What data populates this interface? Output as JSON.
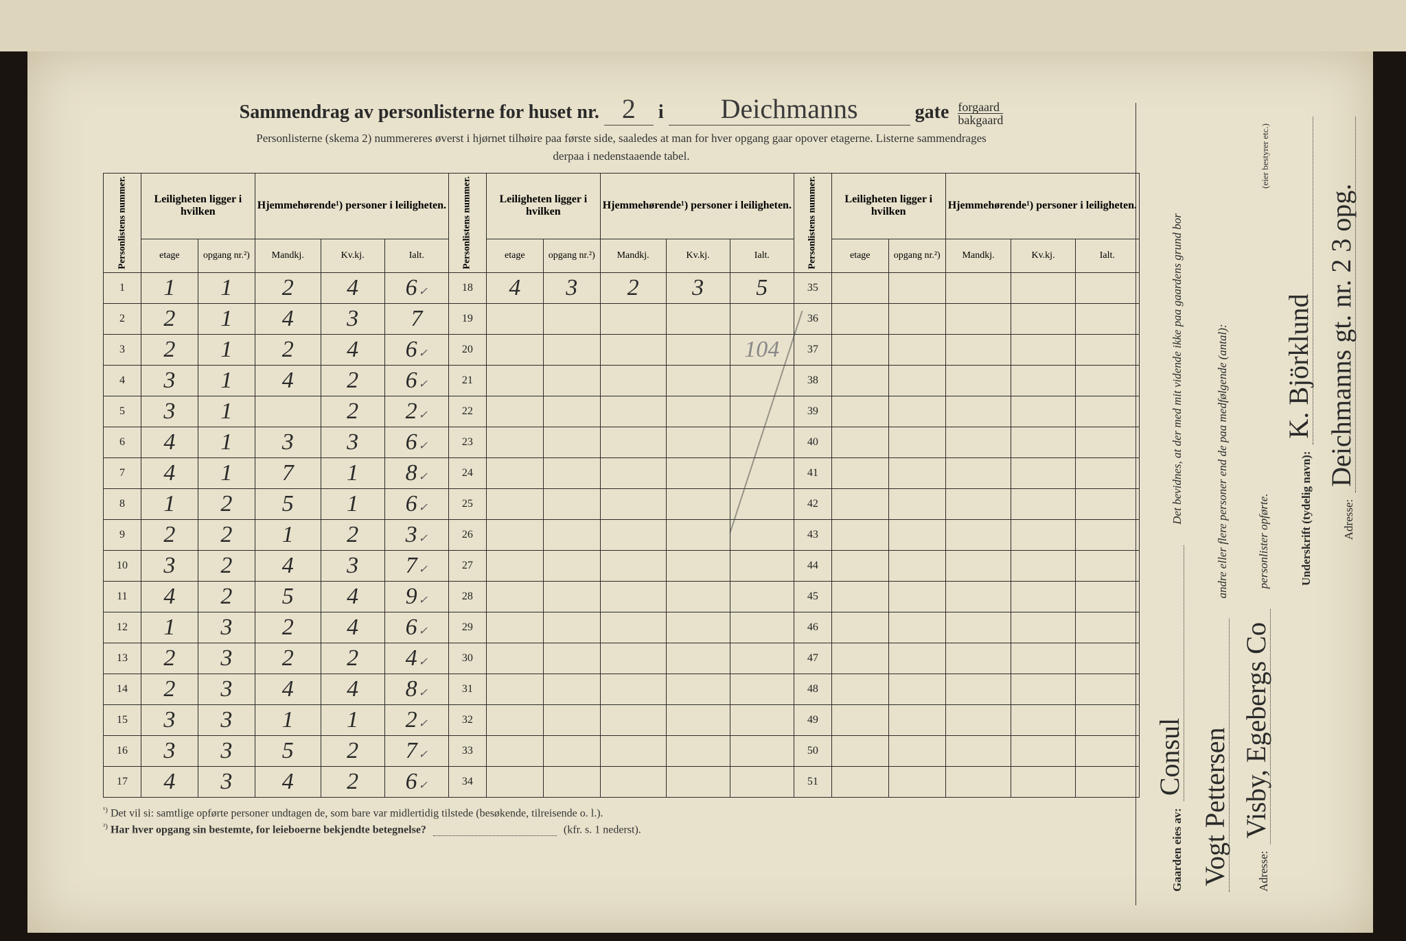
{
  "title": {
    "prefix": "Sammendrag av personlisterne for huset nr.",
    "house_nr": "2",
    "mid": "i",
    "street": "Deichmanns",
    "suffix": "gate",
    "forgaard": "forgaard",
    "bakgaard": "bakgaard"
  },
  "subtitle_line1": "Personlisterne (skema 2) nummereres øverst i hjørnet tilhøire paa første side, saaledes at man for hver opgang gaar opover etagerne.  Listerne sammendrages",
  "subtitle_line2": "derpaa i nedenstaaende tabel.",
  "headers": {
    "personlistens_nummer": "Personlistens nummer.",
    "leiligheten": "Leiligheten ligger i hvilken",
    "hjemmehorende": "Hjemmehørende¹) personer i leiligheten.",
    "etage": "etage",
    "opgang": "opgang nr.²)",
    "mandkj": "Mandkj.",
    "kvkj": "Kv.kj.",
    "ialt": "Ialt."
  },
  "rows_a": [
    {
      "n": "1",
      "e": "1",
      "o": "1",
      "m": "2",
      "k": "4",
      "i": "6",
      "chk": true
    },
    {
      "n": "2",
      "e": "2",
      "o": "1",
      "m": "4",
      "k": "3",
      "i": "7",
      "chk": false
    },
    {
      "n": "3",
      "e": "2",
      "o": "1",
      "m": "2",
      "k": "4",
      "i": "6",
      "chk": true
    },
    {
      "n": "4",
      "e": "3",
      "o": "1",
      "m": "4",
      "k": "2",
      "i": "6",
      "chk": true
    },
    {
      "n": "5",
      "e": "3",
      "o": "1",
      "m": "",
      "k": "2",
      "i": "2",
      "chk": true
    },
    {
      "n": "6",
      "e": "4",
      "o": "1",
      "m": "3",
      "k": "3",
      "i": "6",
      "chk": true
    },
    {
      "n": "7",
      "e": "4",
      "o": "1",
      "m": "7",
      "k": "1",
      "i": "8",
      "chk": true
    },
    {
      "n": "8",
      "e": "1",
      "o": "2",
      "m": "5",
      "k": "1",
      "i": "6",
      "chk": true
    },
    {
      "n": "9",
      "e": "2",
      "o": "2",
      "m": "1",
      "k": "2",
      "i": "3",
      "chk": true
    },
    {
      "n": "10",
      "e": "3",
      "o": "2",
      "m": "4",
      "k": "3",
      "i": "7",
      "chk": true
    },
    {
      "n": "11",
      "e": "4",
      "o": "2",
      "m": "5",
      "k": "4",
      "i": "9",
      "chk": true
    },
    {
      "n": "12",
      "e": "1",
      "o": "3",
      "m": "2",
      "k": "4",
      "i": "6",
      "chk": true
    },
    {
      "n": "13",
      "e": "2",
      "o": "3",
      "m": "2",
      "k": "2",
      "i": "4",
      "chk": true
    },
    {
      "n": "14",
      "e": "2",
      "o": "3",
      "m": "4",
      "k": "4",
      "i": "8",
      "chk": true
    },
    {
      "n": "15",
      "e": "3",
      "o": "3",
      "m": "1",
      "k": "1",
      "i": "2",
      "chk": true
    },
    {
      "n": "16",
      "e": "3",
      "o": "3",
      "m": "5",
      "k": "2",
      "i": "7",
      "chk": true
    },
    {
      "n": "17",
      "e": "4",
      "o": "3",
      "m": "4",
      "k": "2",
      "i": "6",
      "chk": true
    }
  ],
  "rows_b": [
    {
      "n": "18",
      "e": "4",
      "o": "3",
      "m": "2",
      "k": "3",
      "i": "5",
      "chk": false
    },
    {
      "n": "19",
      "e": "",
      "o": "",
      "m": "",
      "k": "",
      "i": "",
      "chk": false
    },
    {
      "n": "20",
      "e": "",
      "o": "",
      "m": "",
      "k": "",
      "i": "104",
      "chk": false,
      "faint": true
    },
    {
      "n": "21"
    },
    {
      "n": "22"
    },
    {
      "n": "23"
    },
    {
      "n": "24"
    },
    {
      "n": "25"
    },
    {
      "n": "26"
    },
    {
      "n": "27"
    },
    {
      "n": "28"
    },
    {
      "n": "29"
    },
    {
      "n": "30"
    },
    {
      "n": "31"
    },
    {
      "n": "32"
    },
    {
      "n": "33"
    },
    {
      "n": "34"
    }
  ],
  "rows_c": [
    {
      "n": "35"
    },
    {
      "n": "36"
    },
    {
      "n": "37"
    },
    {
      "n": "38"
    },
    {
      "n": "39"
    },
    {
      "n": "40"
    },
    {
      "n": "41"
    },
    {
      "n": "42"
    },
    {
      "n": "43"
    },
    {
      "n": "44"
    },
    {
      "n": "45"
    },
    {
      "n": "46"
    },
    {
      "n": "47"
    },
    {
      "n": "48"
    },
    {
      "n": "49"
    },
    {
      "n": "50"
    },
    {
      "n": "51"
    }
  ],
  "footnotes": {
    "f1_sup": "¹)",
    "f1": "Det vil si: samtlige opførte personer undtagen de, som bare var midlertidig tilstede (besøkende, tilreisende o. l.).",
    "f2_sup": "²)",
    "f2a": "Har hver opgang sin bestemte, for leieboerne bekjendte betegnelse?",
    "f2b": "(kfr. s. 1 nederst)."
  },
  "right": {
    "gaarden_label": "Gaarden eies av:",
    "gaarden_value": "Consul",
    "owner2": "Vogt Pettersen",
    "adresse_label": "Adresse:",
    "adresse_value": "Visby, Egebergs Co",
    "bevidnes": "Det bevidnes, at der med mit vidende ikke paa gaardens grund bor",
    "andre": "andre eller flere personer end de paa medfølgende (antal):",
    "personlister": "personlister opførte.",
    "underskrift_label": "Underskrift (tydelig navn):",
    "underskrift_value": "K. Björklund",
    "eier_note": "(eier bestyrer etc.)",
    "adresse2_label": "Adresse:",
    "adresse2_value": "Deichmanns gt. nr. 2  3 opg."
  },
  "colors": {
    "paper": "#e8e2cc",
    "ink": "#2a2a2a",
    "faint": "#888888",
    "border": "#2a2a2a"
  }
}
